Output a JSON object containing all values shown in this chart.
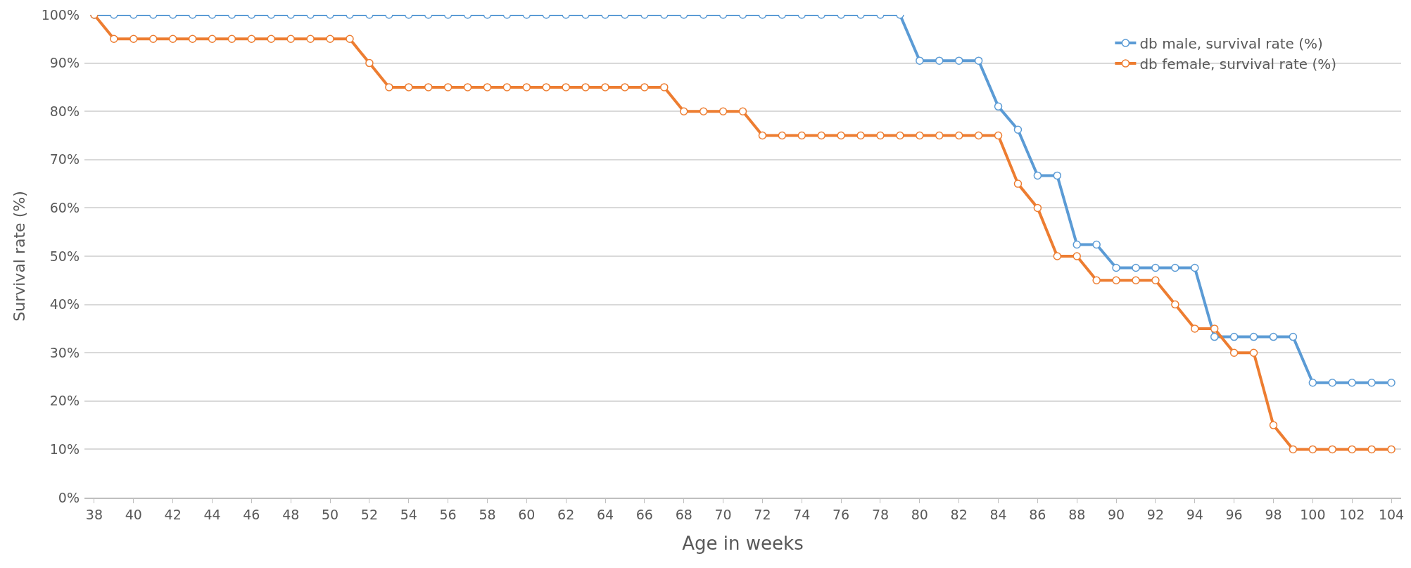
{
  "chart_data": {
    "type": "line",
    "xlabel": "Age in weeks",
    "ylabel": "Survival rate (%)",
    "x": [
      38,
      39,
      40,
      41,
      42,
      43,
      44,
      45,
      46,
      47,
      48,
      49,
      50,
      51,
      52,
      53,
      54,
      55,
      56,
      57,
      58,
      59,
      60,
      61,
      62,
      63,
      64,
      65,
      66,
      67,
      68,
      69,
      70,
      71,
      72,
      73,
      74,
      75,
      76,
      77,
      78,
      79,
      80,
      81,
      82,
      83,
      84,
      85,
      86,
      87,
      88,
      89,
      90,
      91,
      92,
      93,
      94,
      95,
      96,
      97,
      98,
      99,
      100,
      101,
      102,
      103,
      104
    ],
    "series": [
      {
        "name": "db male, survival rate (%)",
        "color": "#5b9bd5",
        "values": [
          100,
          100,
          100,
          100,
          100,
          100,
          100,
          100,
          100,
          100,
          100,
          100,
          100,
          100,
          100,
          100,
          100,
          100,
          100,
          100,
          100,
          100,
          100,
          100,
          100,
          100,
          100,
          100,
          100,
          100,
          100,
          100,
          100,
          100,
          100,
          100,
          100,
          100,
          100,
          100,
          100,
          100,
          90.5,
          90.5,
          90.5,
          90.5,
          81,
          76.2,
          66.7,
          66.7,
          52.4,
          52.4,
          47.6,
          47.6,
          47.6,
          47.6,
          47.6,
          33.3,
          33.3,
          33.3,
          33.3,
          33.3,
          23.8,
          23.8,
          23.8,
          23.8,
          23.8
        ]
      },
      {
        "name": "db female, survival rate (%)",
        "color": "#ed7d31",
        "values": [
          100,
          95,
          95,
          95,
          95,
          95,
          95,
          95,
          95,
          95,
          95,
          95,
          95,
          95,
          90,
          85,
          85,
          85,
          85,
          85,
          85,
          85,
          85,
          85,
          85,
          85,
          85,
          85,
          85,
          85,
          80,
          80,
          80,
          80,
          75,
          75,
          75,
          75,
          75,
          75,
          75,
          75,
          75,
          75,
          75,
          75,
          75,
          65,
          60,
          50,
          50,
          45,
          45,
          45,
          45,
          40,
          35,
          35,
          30,
          30,
          15,
          10,
          10,
          10,
          10,
          10,
          10
        ]
      }
    ],
    "xlim": [
      37.5,
      104.5
    ],
    "xticks": [
      38,
      40,
      42,
      44,
      46,
      48,
      50,
      52,
      54,
      56,
      58,
      60,
      62,
      64,
      66,
      68,
      70,
      72,
      74,
      76,
      78,
      80,
      82,
      84,
      86,
      88,
      90,
      92,
      94,
      96,
      98,
      100,
      102,
      104
    ],
    "ylim": [
      0,
      100
    ],
    "yticks": [
      {
        "value": 0,
        "label": "0%"
      },
      {
        "value": 10,
        "label": "10%"
      },
      {
        "value": 20,
        "label": "20%"
      },
      {
        "value": 30,
        "label": "30%"
      },
      {
        "value": 40,
        "label": "40%"
      },
      {
        "value": 50,
        "label": "50%"
      },
      {
        "value": 60,
        "label": "60%"
      },
      {
        "value": 70,
        "label": "70%"
      },
      {
        "value": 80,
        "label": "80%"
      },
      {
        "value": 90,
        "label": "90%"
      },
      {
        "value": 100,
        "label": "100%"
      }
    ],
    "grid": "y",
    "legend": "top right",
    "marker": "circle",
    "line_style": "solid"
  }
}
